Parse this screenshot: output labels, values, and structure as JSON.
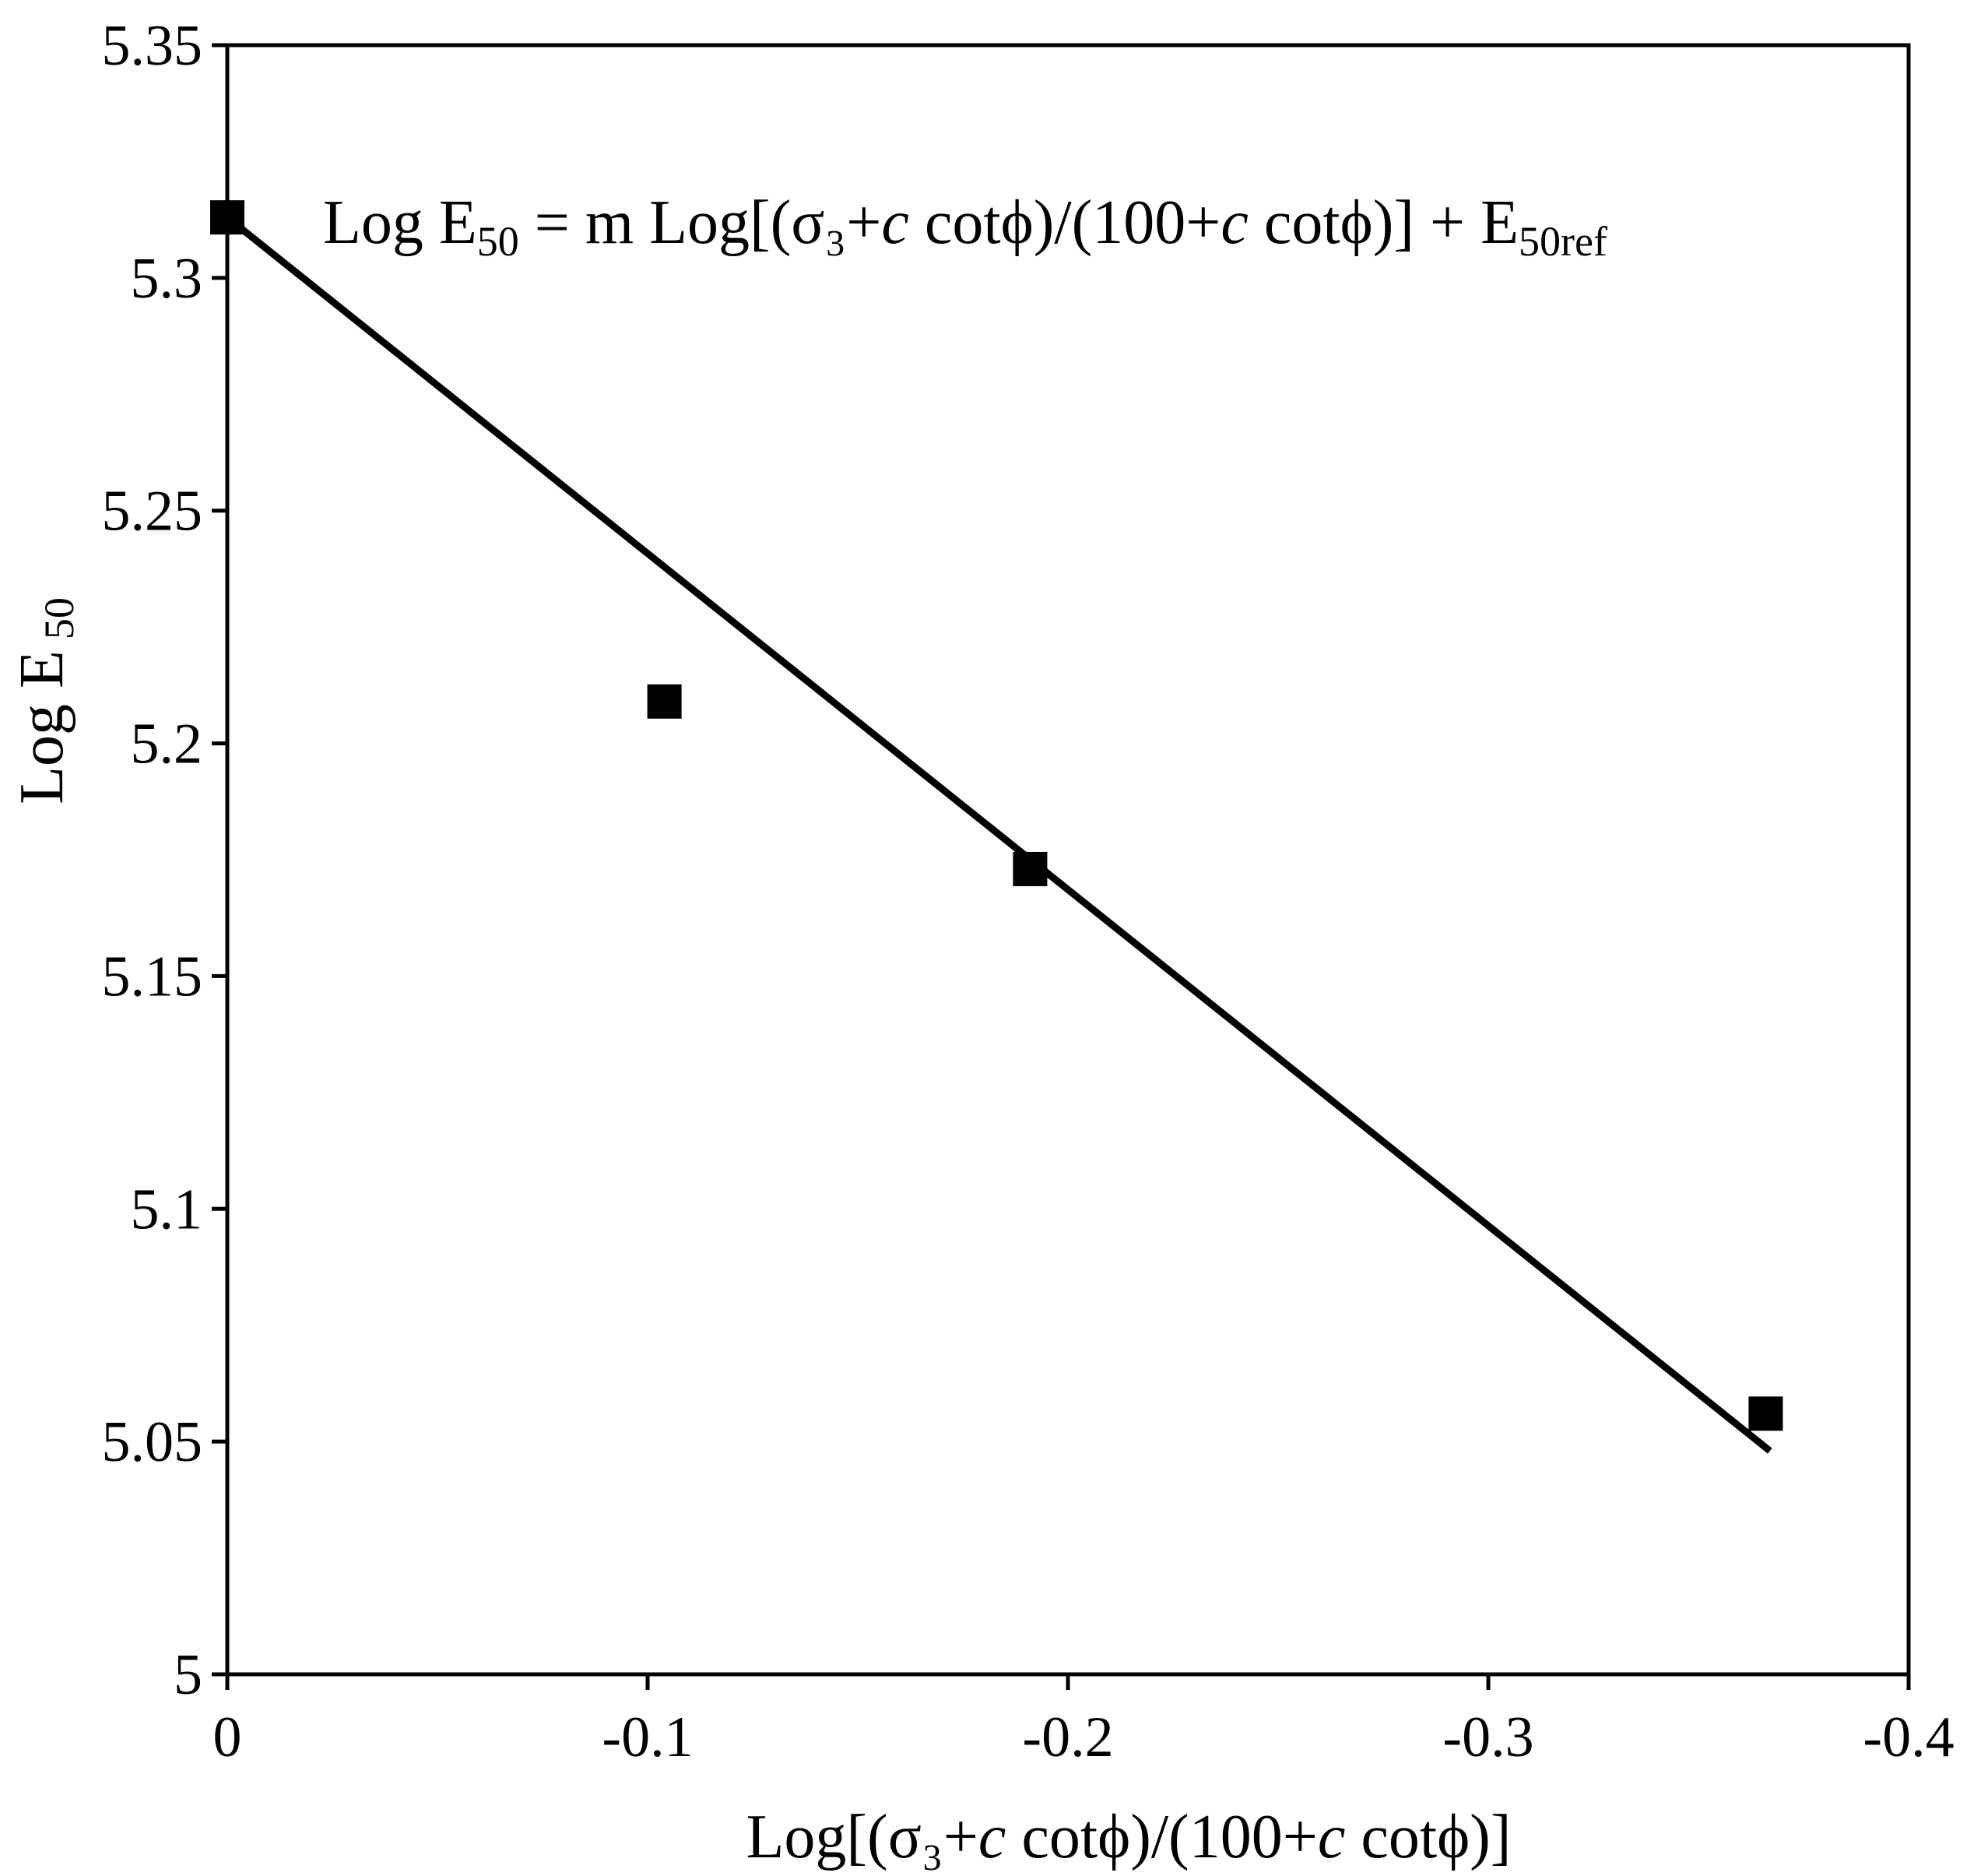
{
  "chart_data": {
    "type": "scatter",
    "x_axis": {
      "label_parts": [
        {
          "text": "Log[(σ₃+",
          "style": "normal"
        },
        {
          "text": "c",
          "style": "italic"
        },
        {
          "text": " cotϕ)/(100+",
          "style": "normal"
        },
        {
          "text": "c",
          "style": "italic"
        },
        {
          "text": " cotϕ)]",
          "style": "normal"
        }
      ],
      "xlim": [
        0,
        -0.4
      ],
      "ticks": [
        0,
        -0.1,
        -0.2,
        -0.3,
        -0.4
      ],
      "tick_labels": [
        "0",
        "-0.1",
        "-0.2",
        "-0.3",
        "-0.4"
      ]
    },
    "y_axis": {
      "label_main": "Log E",
      "label_sub": "50",
      "ylim": [
        5,
        5.35
      ],
      "ticks": [
        5,
        5.05,
        5.1,
        5.15,
        5.2,
        5.25,
        5.3,
        5.35
      ],
      "tick_labels": [
        "5",
        "5.05",
        "5.1",
        "5.15",
        "5.2",
        "5.25",
        "5.3",
        "5.35"
      ]
    },
    "series": [
      {
        "marker": "square",
        "color": "#000000",
        "x": [
          0,
          -0.104,
          -0.191,
          -0.366
        ],
        "y": [
          5.313,
          5.209,
          5.173,
          5.056
        ]
      }
    ],
    "fit_line": {
      "color": "#000000",
      "x": [
        0,
        -0.367
      ],
      "y": [
        5.313,
        5.048
      ]
    },
    "equation": {
      "parts": [
        {
          "text": "Log E",
          "style": "normal"
        },
        {
          "text": "50",
          "style": "sub"
        },
        {
          "text": " = m Log[(σ₃+",
          "style": "normal"
        },
        {
          "text": "c",
          "style": "italic"
        },
        {
          "text": " cotϕ)/(100+",
          "style": "normal"
        },
        {
          "text": "c",
          "style": "italic"
        },
        {
          "text": " cotϕ)] + E",
          "style": "normal"
        },
        {
          "text": "50ref",
          "style": "sub"
        }
      ]
    },
    "grid": false,
    "legend": "none"
  }
}
